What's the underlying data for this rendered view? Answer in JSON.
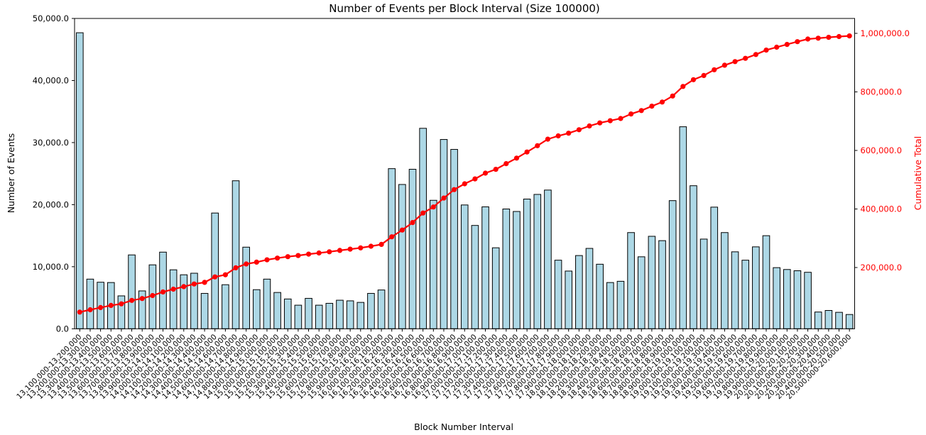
{
  "chart_data": {
    "type": "bar",
    "title": "Number of Events per Block Interval (Size 100000)",
    "xlabel": "Block Number Interval",
    "ylabel_left": "Number of Events",
    "ylabel_right": "Cumulative Total",
    "grid": false,
    "legend": "none",
    "bar_color": "#ADD8E6",
    "bar_edge_color": "#000000",
    "line_color": "#FF0000",
    "categories": [
      "13,100,000-13,200,000",
      "13,200,000-13,300,000",
      "13,300,000-13,400,000",
      "13,400,000-13,500,000",
      "13,500,000-13,600,000",
      "13,600,000-13,700,000",
      "13,700,000-13,800,000",
      "13,800,000-13,900,000",
      "13,900,000-14,000,000",
      "14,000,000-14,100,000",
      "14,100,000-14,200,000",
      "14,200,000-14,300,000",
      "14,300,000-14,400,000",
      "14,400,000-14,500,000",
      "14,500,000-14,600,000",
      "14,600,000-14,700,000",
      "14,700,000-14,800,000",
      "14,800,000-14,900,000",
      "14,900,000-15,000,000",
      "15,000,000-15,100,000",
      "15,100,000-15,200,000",
      "15,200,000-15,300,000",
      "15,300,000-15,400,000",
      "15,400,000-15,500,000",
      "15,500,000-15,600,000",
      "15,600,000-15,700,000",
      "15,700,000-15,800,000",
      "15,800,000-15,900,000",
      "15,900,000-16,000,000",
      "16,000,000-16,100,000",
      "16,100,000-16,200,000",
      "16,200,000-16,300,000",
      "16,300,000-16,400,000",
      "16,400,000-16,500,000",
      "16,500,000-16,600,000",
      "16,600,000-16,700,000",
      "16,700,000-16,800,000",
      "16,800,000-16,900,000",
      "16,900,000-17,000,000",
      "17,000,000-17,100,000",
      "17,100,000-17,200,000",
      "17,200,000-17,300,000",
      "17,300,000-17,400,000",
      "17,400,000-17,500,000",
      "17,500,000-17,600,000",
      "17,600,000-17,700,000",
      "17,700,000-17,800,000",
      "17,800,000-17,900,000",
      "17,900,000-18,000,000",
      "18,000,000-18,100,000",
      "18,100,000-18,200,000",
      "18,200,000-18,300,000",
      "18,300,000-18,400,000",
      "18,400,000-18,500,000",
      "18,500,000-18,600,000",
      "18,600,000-18,700,000",
      "18,700,000-18,800,000",
      "18,800,000-18,900,000",
      "18,900,000-19,000,000",
      "19,000,000-19,100,000",
      "19,100,000-19,200,000",
      "19,200,000-19,300,000",
      "19,300,000-19,400,000",
      "19,400,000-19,500,000",
      "19,500,000-19,600,000",
      "19,600,000-19,700,000",
      "19,700,000-19,800,000",
      "19,800,000-19,900,000",
      "19,900,000-20,000,000",
      "20,000,000-20,100,000",
      "20,100,000-20,200,000",
      "20,200,000-20,300,000",
      "20,300,000-20,400,000",
      "20,400,000-20,500,000",
      "20,500,000-20,600,000"
    ],
    "series": [
      {
        "name": "Number of Events",
        "type": "bar",
        "values": [
          47700,
          8000,
          7500,
          7450,
          5300,
          11900,
          6100,
          10300,
          12350,
          9500,
          8700,
          8950,
          5700,
          18650,
          7100,
          23850,
          13150,
          6300,
          8000,
          5850,
          4800,
          3800,
          4900,
          3800,
          4100,
          4600,
          4500,
          4250,
          5700,
          6250,
          25800,
          23250,
          25700,
          32300,
          20700,
          30500,
          28900,
          19950,
          16650,
          19650,
          13050,
          19300,
          18900,
          20900,
          21650,
          22350,
          11050,
          9300,
          11800,
          12950,
          10400,
          7450,
          7650,
          15500,
          11600,
          14900,
          14200,
          20650,
          32550,
          23050,
          14450,
          19600,
          15500,
          12400,
          11050,
          13200,
          15000,
          9850,
          9550,
          9350,
          9100,
          2700,
          2950,
          2650,
          2300
        ]
      },
      {
        "name": "Cumulative Total",
        "type": "line",
        "values": [
          47700,
          55700,
          63200,
          70650,
          75950,
          87850,
          93950,
          104250,
          116600,
          126100,
          134800,
          143750,
          149450,
          168100,
          175200,
          199050,
          212200,
          218500,
          226500,
          232350,
          237150,
          240950,
          245850,
          249650,
          253750,
          258350,
          262850,
          267100,
          272800,
          279050,
          304850,
          328100,
          353800,
          386100,
          406800,
          437300,
          466200,
          486150,
          502800,
          522450,
          535500,
          554800,
          573700,
          594600,
          616250,
          638600,
          649650,
          658950,
          670750,
          683700,
          694100,
          701550,
          709200,
          724700,
          736300,
          751200,
          765400,
          786050,
          818600,
          841650,
          856100,
          875700,
          891200,
          903600,
          914650,
          927850,
          942850,
          952700,
          962250,
          971600,
          980700,
          983400,
          986350,
          989000,
          991300
        ]
      }
    ],
    "left_axis": {
      "min": 0,
      "max": 50000,
      "tick_values": [
        0,
        10000,
        20000,
        30000,
        40000,
        50000
      ],
      "tick_labels": [
        "0.0",
        "10,000.0",
        "20,000.0",
        "30,000.0",
        "40,000.0",
        "50,000.0"
      ]
    },
    "right_axis": {
      "min": 0,
      "tick_values": [
        200000,
        400000,
        600000,
        800000,
        1000000
      ],
      "tick_labels": [
        "200,000.0",
        "400,000.0",
        "600,000.0",
        "800,000.0",
        "1,000,000.0"
      ],
      "label_color": "#FF0000"
    }
  }
}
